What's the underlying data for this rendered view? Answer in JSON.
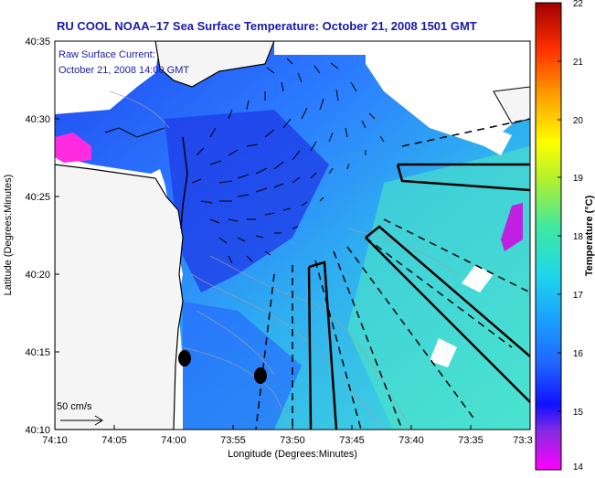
{
  "figure": {
    "title": "RU COOL  NOAA–17  Sea Surface Temperature:  October 21, 2008 1501 GMT",
    "title_color": "#1a1aa8",
    "current_label_line1": "Raw Surface Current:",
    "current_label_line2": "October 21, 2008 14:00 GMT",
    "current_label_color": "#1a1aa8"
  },
  "axes": {
    "xlabel": "Longitude (Degrees:Minutes)",
    "ylabel": "Latitude (Degrees:Minutes)",
    "xticks": [
      "74:10",
      "74:05",
      "74:00",
      "73:55",
      "73:50",
      "73:45",
      "73:40",
      "73:35",
      "73:3"
    ],
    "yticks": [
      "40:35",
      "40:30",
      "40:25",
      "40:20",
      "40:15",
      "40:10"
    ]
  },
  "colorbar": {
    "label": "Temperature (°C)",
    "ticks": [
      "22",
      "21",
      "20",
      "19",
      "18",
      "17",
      "16",
      "15",
      "14"
    ],
    "min": 14,
    "max": 22,
    "colors": [
      "#ff00ff",
      "#2020ff",
      "#2090ff",
      "#20c0ff",
      "#40e0d0",
      "#80ff80",
      "#ffff00",
      "#ff8000",
      "#ff0000",
      "#a00000"
    ]
  },
  "scale_arrow": {
    "label": "50 cm/s"
  },
  "colors": {
    "land": "#f5f5f5",
    "water_cool": "#2a5cff",
    "water_warm": "#3ad0e0",
    "track_line": "#000000"
  }
}
